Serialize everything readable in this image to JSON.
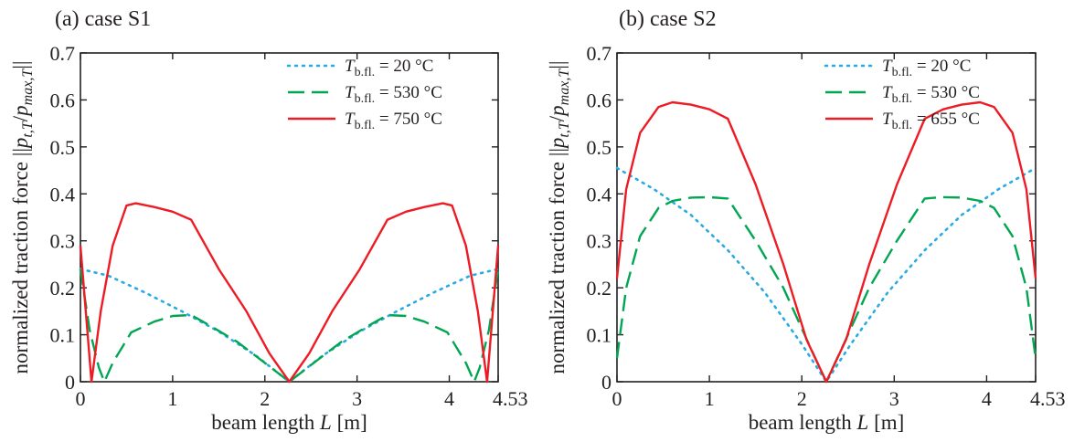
{
  "chart_data": [
    {
      "type": "line",
      "title": "(a) case S1",
      "xlabel": "beam length L [m]",
      "ylabel": "normalized traction force ||p_t,T / p_max,T||",
      "xlim": [
        0,
        4.53
      ],
      "ylim": [
        0,
        0.7
      ],
      "xticks": [
        "0",
        "1",
        "2",
        "3",
        "4",
        "4.53"
      ],
      "yticks": [
        "0",
        "0.1",
        "0.2",
        "0.3",
        "0.4",
        "0.5",
        "0.6",
        "0.7"
      ],
      "legend_position": "top-right",
      "grid": false,
      "series": [
        {
          "name": "T_b.fl. = 20 °C",
          "legend": {
            "sym": "T",
            "sub": "b.fl.",
            "rest": " = 20 °C"
          },
          "color": "#29abe2",
          "style": "dotted",
          "x": [
            0,
            0.3,
            0.7,
            1.1,
            1.5,
            1.9,
            2.265,
            2.63,
            3.03,
            3.43,
            3.83,
            4.23,
            4.53
          ],
          "y": [
            0.24,
            0.226,
            0.19,
            0.15,
            0.107,
            0.056,
            0,
            0.056,
            0.107,
            0.15,
            0.19,
            0.226,
            0.24
          ]
        },
        {
          "name": "T_b.fl. = 530 °C",
          "legend": {
            "sym": "T",
            "sub": "b.fl.",
            "rest": " = 530 °C"
          },
          "color": "#00a651",
          "style": "dashed",
          "x": [
            0,
            0.1,
            0.2,
            0.26,
            0.35,
            0.55,
            0.8,
            1.0,
            1.2,
            1.4,
            1.7,
            2.0,
            2.265,
            2.53,
            2.83,
            3.13,
            3.33,
            3.53,
            3.73,
            3.98,
            4.18,
            4.27,
            4.33,
            4.43,
            4.53
          ],
          "y": [
            0.24,
            0.11,
            0.03,
            0,
            0.04,
            0.105,
            0.128,
            0.14,
            0.142,
            0.12,
            0.085,
            0.04,
            0,
            0.04,
            0.085,
            0.12,
            0.142,
            0.14,
            0.128,
            0.105,
            0.04,
            0,
            0.03,
            0.11,
            0.24
          ]
        },
        {
          "name": "T_b.fl. = 750 °C",
          "legend": {
            "sym": "T",
            "sub": "b.fl.",
            "rest": " = 750 °C"
          },
          "color": "#ed1c24",
          "style": "solid",
          "x": [
            0,
            0.07,
            0.12,
            0.22,
            0.35,
            0.5,
            0.6,
            0.8,
            1.0,
            1.2,
            1.5,
            1.8,
            2.05,
            2.265,
            2.48,
            2.73,
            3.03,
            3.33,
            3.53,
            3.73,
            3.93,
            4.03,
            4.18,
            4.31,
            4.41,
            4.46,
            4.53
          ],
          "y": [
            0.29,
            0.12,
            0,
            0.15,
            0.29,
            0.375,
            0.38,
            0.372,
            0.362,
            0.345,
            0.24,
            0.15,
            0.06,
            0,
            0.06,
            0.15,
            0.24,
            0.345,
            0.362,
            0.372,
            0.38,
            0.375,
            0.29,
            0.15,
            0,
            0.12,
            0.29
          ]
        }
      ]
    },
    {
      "type": "line",
      "title": "(b) case S2",
      "xlabel": "beam length L [m]",
      "ylabel": "normalized traction force ||p_t,T / p_max,T||",
      "xlim": [
        0,
        4.53
      ],
      "ylim": [
        0,
        0.7
      ],
      "xticks": [
        "0",
        "1",
        "2",
        "3",
        "4",
        "4.53"
      ],
      "yticks": [
        "0",
        "0.1",
        "0.2",
        "0.3",
        "0.4",
        "0.5",
        "0.6",
        "0.7"
      ],
      "legend_position": "top-right",
      "grid": false,
      "series": [
        {
          "name": "T_b.fl. = 20 °C",
          "legend": {
            "sym": "T",
            "sub": "b.fl.",
            "rest": " = 20 °C"
          },
          "color": "#29abe2",
          "style": "dotted",
          "x": [
            0,
            0.4,
            0.8,
            1.2,
            1.6,
            2.0,
            2.265,
            2.53,
            2.93,
            3.33,
            3.73,
            4.13,
            4.53
          ],
          "y": [
            0.455,
            0.41,
            0.355,
            0.28,
            0.19,
            0.08,
            0,
            0.08,
            0.19,
            0.28,
            0.355,
            0.41,
            0.455
          ]
        },
        {
          "name": "T_b.fl. = 530 °C",
          "legend": {
            "sym": "T",
            "sub": "b.fl.",
            "rest": " = 530 °C"
          },
          "color": "#00a651",
          "style": "dashed",
          "x": [
            0,
            0.1,
            0.25,
            0.45,
            0.6,
            0.8,
            1.0,
            1.2,
            1.5,
            1.8,
            2.1,
            2.265,
            2.43,
            2.73,
            3.03,
            3.33,
            3.53,
            3.73,
            3.93,
            4.08,
            4.28,
            4.43,
            4.53
          ],
          "y": [
            0.05,
            0.2,
            0.31,
            0.37,
            0.385,
            0.392,
            0.393,
            0.39,
            0.3,
            0.2,
            0.07,
            0,
            0.07,
            0.2,
            0.3,
            0.39,
            0.393,
            0.392,
            0.385,
            0.37,
            0.31,
            0.2,
            0.05
          ]
        },
        {
          "name": "T_b.fl. = 655 °C",
          "legend": {
            "sym": "T",
            "sub": "b.fl.",
            "rest": " = 655 °C"
          },
          "color": "#ed1c24",
          "style": "solid",
          "x": [
            0,
            0.1,
            0.25,
            0.45,
            0.6,
            0.8,
            1.0,
            1.2,
            1.5,
            1.8,
            2.05,
            2.265,
            2.48,
            2.73,
            3.03,
            3.33,
            3.53,
            3.73,
            3.93,
            4.08,
            4.28,
            4.43,
            4.53
          ],
          "y": [
            0.22,
            0.41,
            0.53,
            0.585,
            0.595,
            0.59,
            0.58,
            0.56,
            0.42,
            0.25,
            0.09,
            0,
            0.09,
            0.25,
            0.42,
            0.56,
            0.58,
            0.59,
            0.595,
            0.585,
            0.53,
            0.41,
            0.22
          ]
        }
      ]
    }
  ]
}
